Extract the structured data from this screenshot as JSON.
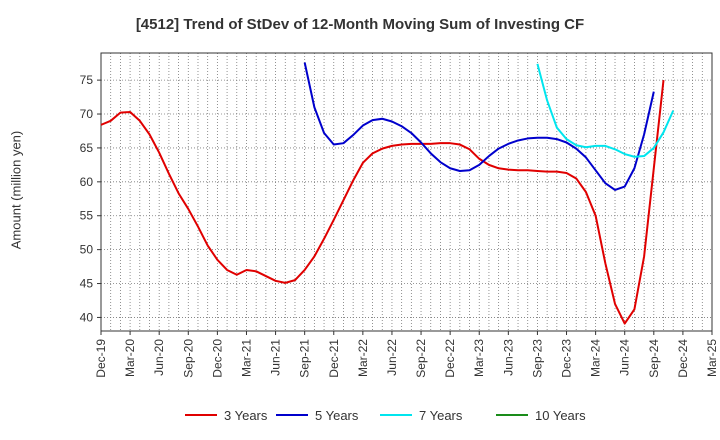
{
  "chart_data": {
    "type": "line",
    "title": "[4512]  Trend of StDev of 12-Month Moving Sum of Investing CF",
    "xlabel": "",
    "ylabel": "Amount (million yen)",
    "ylim": [
      38,
      79
    ],
    "yticks": [
      40,
      45,
      50,
      55,
      60,
      65,
      70,
      75
    ],
    "x_tick_labels": [
      "Dec-19",
      "Mar-20",
      "Jun-20",
      "Sep-20",
      "Dec-20",
      "Mar-21",
      "Jun-21",
      "Sep-21",
      "Dec-21",
      "Mar-22",
      "Jun-22",
      "Sep-22",
      "Dec-22",
      "Mar-23",
      "Jun-23",
      "Sep-23",
      "Dec-23",
      "Mar-24",
      "Jun-24",
      "Sep-24",
      "Dec-24",
      "Mar-25"
    ],
    "grid": true,
    "legend_position": "bottom",
    "series": [
      {
        "name": "3 Years",
        "color": "#e00000",
        "start_index": 0,
        "values": [
          68.4,
          69.0,
          70.2,
          70.3,
          69.0,
          67.0,
          64.3,
          61.2,
          58.3,
          56.0,
          53.4,
          50.6,
          48.5,
          47.0,
          46.3,
          47.0,
          46.8,
          46.1,
          45.4,
          45.1,
          45.5,
          47.0,
          49.0,
          51.6,
          54.4,
          57.3,
          60.2,
          62.8,
          64.2,
          64.9,
          65.3,
          65.5,
          65.6,
          65.6,
          65.6,
          65.7,
          65.7,
          65.5,
          64.8,
          63.4,
          62.5,
          62.0,
          61.8,
          61.7,
          61.7,
          61.6,
          61.5,
          61.5,
          61.3,
          60.5,
          58.5,
          55.0,
          48.0,
          42.0,
          39.1,
          41.2,
          49.0,
          62.0,
          75.0
        ]
      },
      {
        "name": "5 Years",
        "color": "#0000cc",
        "start_index": 21,
        "values": [
          77.6,
          71.0,
          67.2,
          65.5,
          65.7,
          66.9,
          68.3,
          69.1,
          69.3,
          68.9,
          68.2,
          67.2,
          65.8,
          64.2,
          62.9,
          62.0,
          61.6,
          61.7,
          62.5,
          63.8,
          64.9,
          65.6,
          66.1,
          66.4,
          66.5,
          66.5,
          66.3,
          65.8,
          64.9,
          63.6,
          61.7,
          59.8,
          58.8,
          59.3,
          62.0,
          67.0,
          73.3
        ]
      },
      {
        "name": "7 Years",
        "color": "#00e5ee",
        "start_index": 45,
        "values": [
          77.4,
          72.0,
          68.0,
          66.3,
          65.4,
          65.1,
          65.3,
          65.3,
          64.8,
          64.1,
          63.7,
          63.8,
          65.0,
          67.3,
          70.5
        ]
      },
      {
        "name": "10 Years",
        "color": "#1a8c1a",
        "start_index": 0,
        "values": []
      }
    ]
  }
}
